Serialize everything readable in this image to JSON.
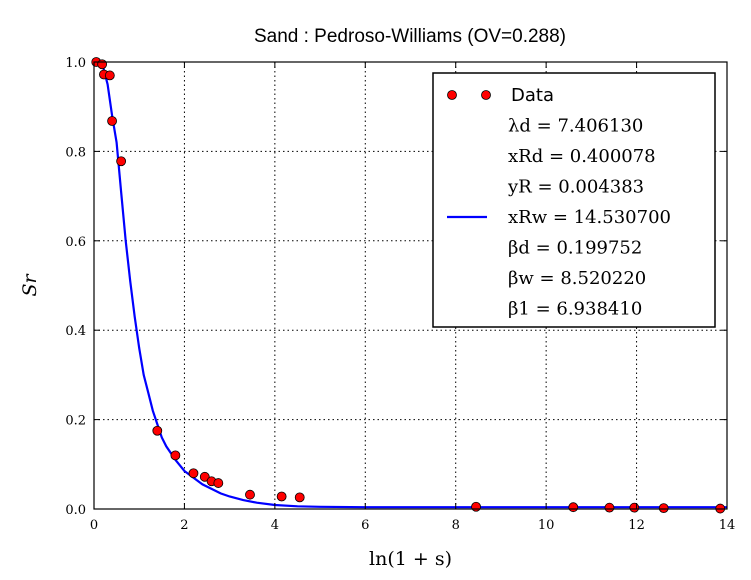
{
  "chart_data": {
    "type": "scatter",
    "title": "Sand : Pedroso-Williams (OV=0.288)",
    "xlabel": "ln(1 + s)",
    "ylabel": "Sr",
    "xlim": [
      0,
      14
    ],
    "ylim": [
      0,
      1.0
    ],
    "xticks": [
      0,
      2,
      4,
      6,
      8,
      10,
      12,
      14
    ],
    "yticks": [
      0.0,
      0.2,
      0.4,
      0.6,
      0.8,
      1.0
    ],
    "grid": true,
    "legend_position": "top-right",
    "series": [
      {
        "name": "Data",
        "kind": "scatter",
        "color": "#ff0000",
        "x": [
          0.05,
          0.18,
          0.22,
          0.35,
          0.4,
          0.6,
          1.4,
          1.8,
          2.2,
          2.45,
          2.6,
          2.75,
          3.45,
          4.15,
          4.55,
          8.45,
          10.6,
          11.4,
          11.95,
          12.6,
          13.85
        ],
        "y": [
          1.0,
          0.995,
          0.972,
          0.97,
          0.868,
          0.778,
          0.175,
          0.12,
          0.08,
          0.072,
          0.062,
          0.058,
          0.032,
          0.028,
          0.026,
          0.005,
          0.004,
          0.003,
          0.003,
          0.002,
          0.001
        ]
      },
      {
        "kind": "line",
        "color": "#0000ff",
        "x": [
          0,
          0.1,
          0.2,
          0.3,
          0.4,
          0.5,
          0.6,
          0.7,
          0.8,
          0.9,
          1.0,
          1.1,
          1.2,
          1.3,
          1.4,
          1.5,
          1.6,
          1.8,
          2.0,
          2.2,
          2.4,
          2.6,
          2.8,
          3.0,
          3.3,
          3.6,
          4.0,
          4.5,
          5.0,
          6.0,
          7.0,
          8.0,
          10.0,
          12.0,
          14.0
        ],
        "y": [
          1.0,
          1.0,
          0.99,
          0.95,
          0.88,
          0.82,
          0.71,
          0.6,
          0.51,
          0.43,
          0.36,
          0.3,
          0.26,
          0.22,
          0.19,
          0.16,
          0.14,
          0.11,
          0.085,
          0.07,
          0.055,
          0.045,
          0.035,
          0.028,
          0.02,
          0.014,
          0.009,
          0.006,
          0.005,
          0.004,
          0.004,
          0.004,
          0.004,
          0.004,
          0.004
        ]
      }
    ],
    "legend_entries": [
      "Data",
      "λd = 7.406130",
      "xRd = 0.400078",
      "yR = 0.004383",
      "xRw = 14.530700",
      "βd = 0.199752",
      "βw = 8.520220",
      "β1 = 6.938410"
    ]
  }
}
